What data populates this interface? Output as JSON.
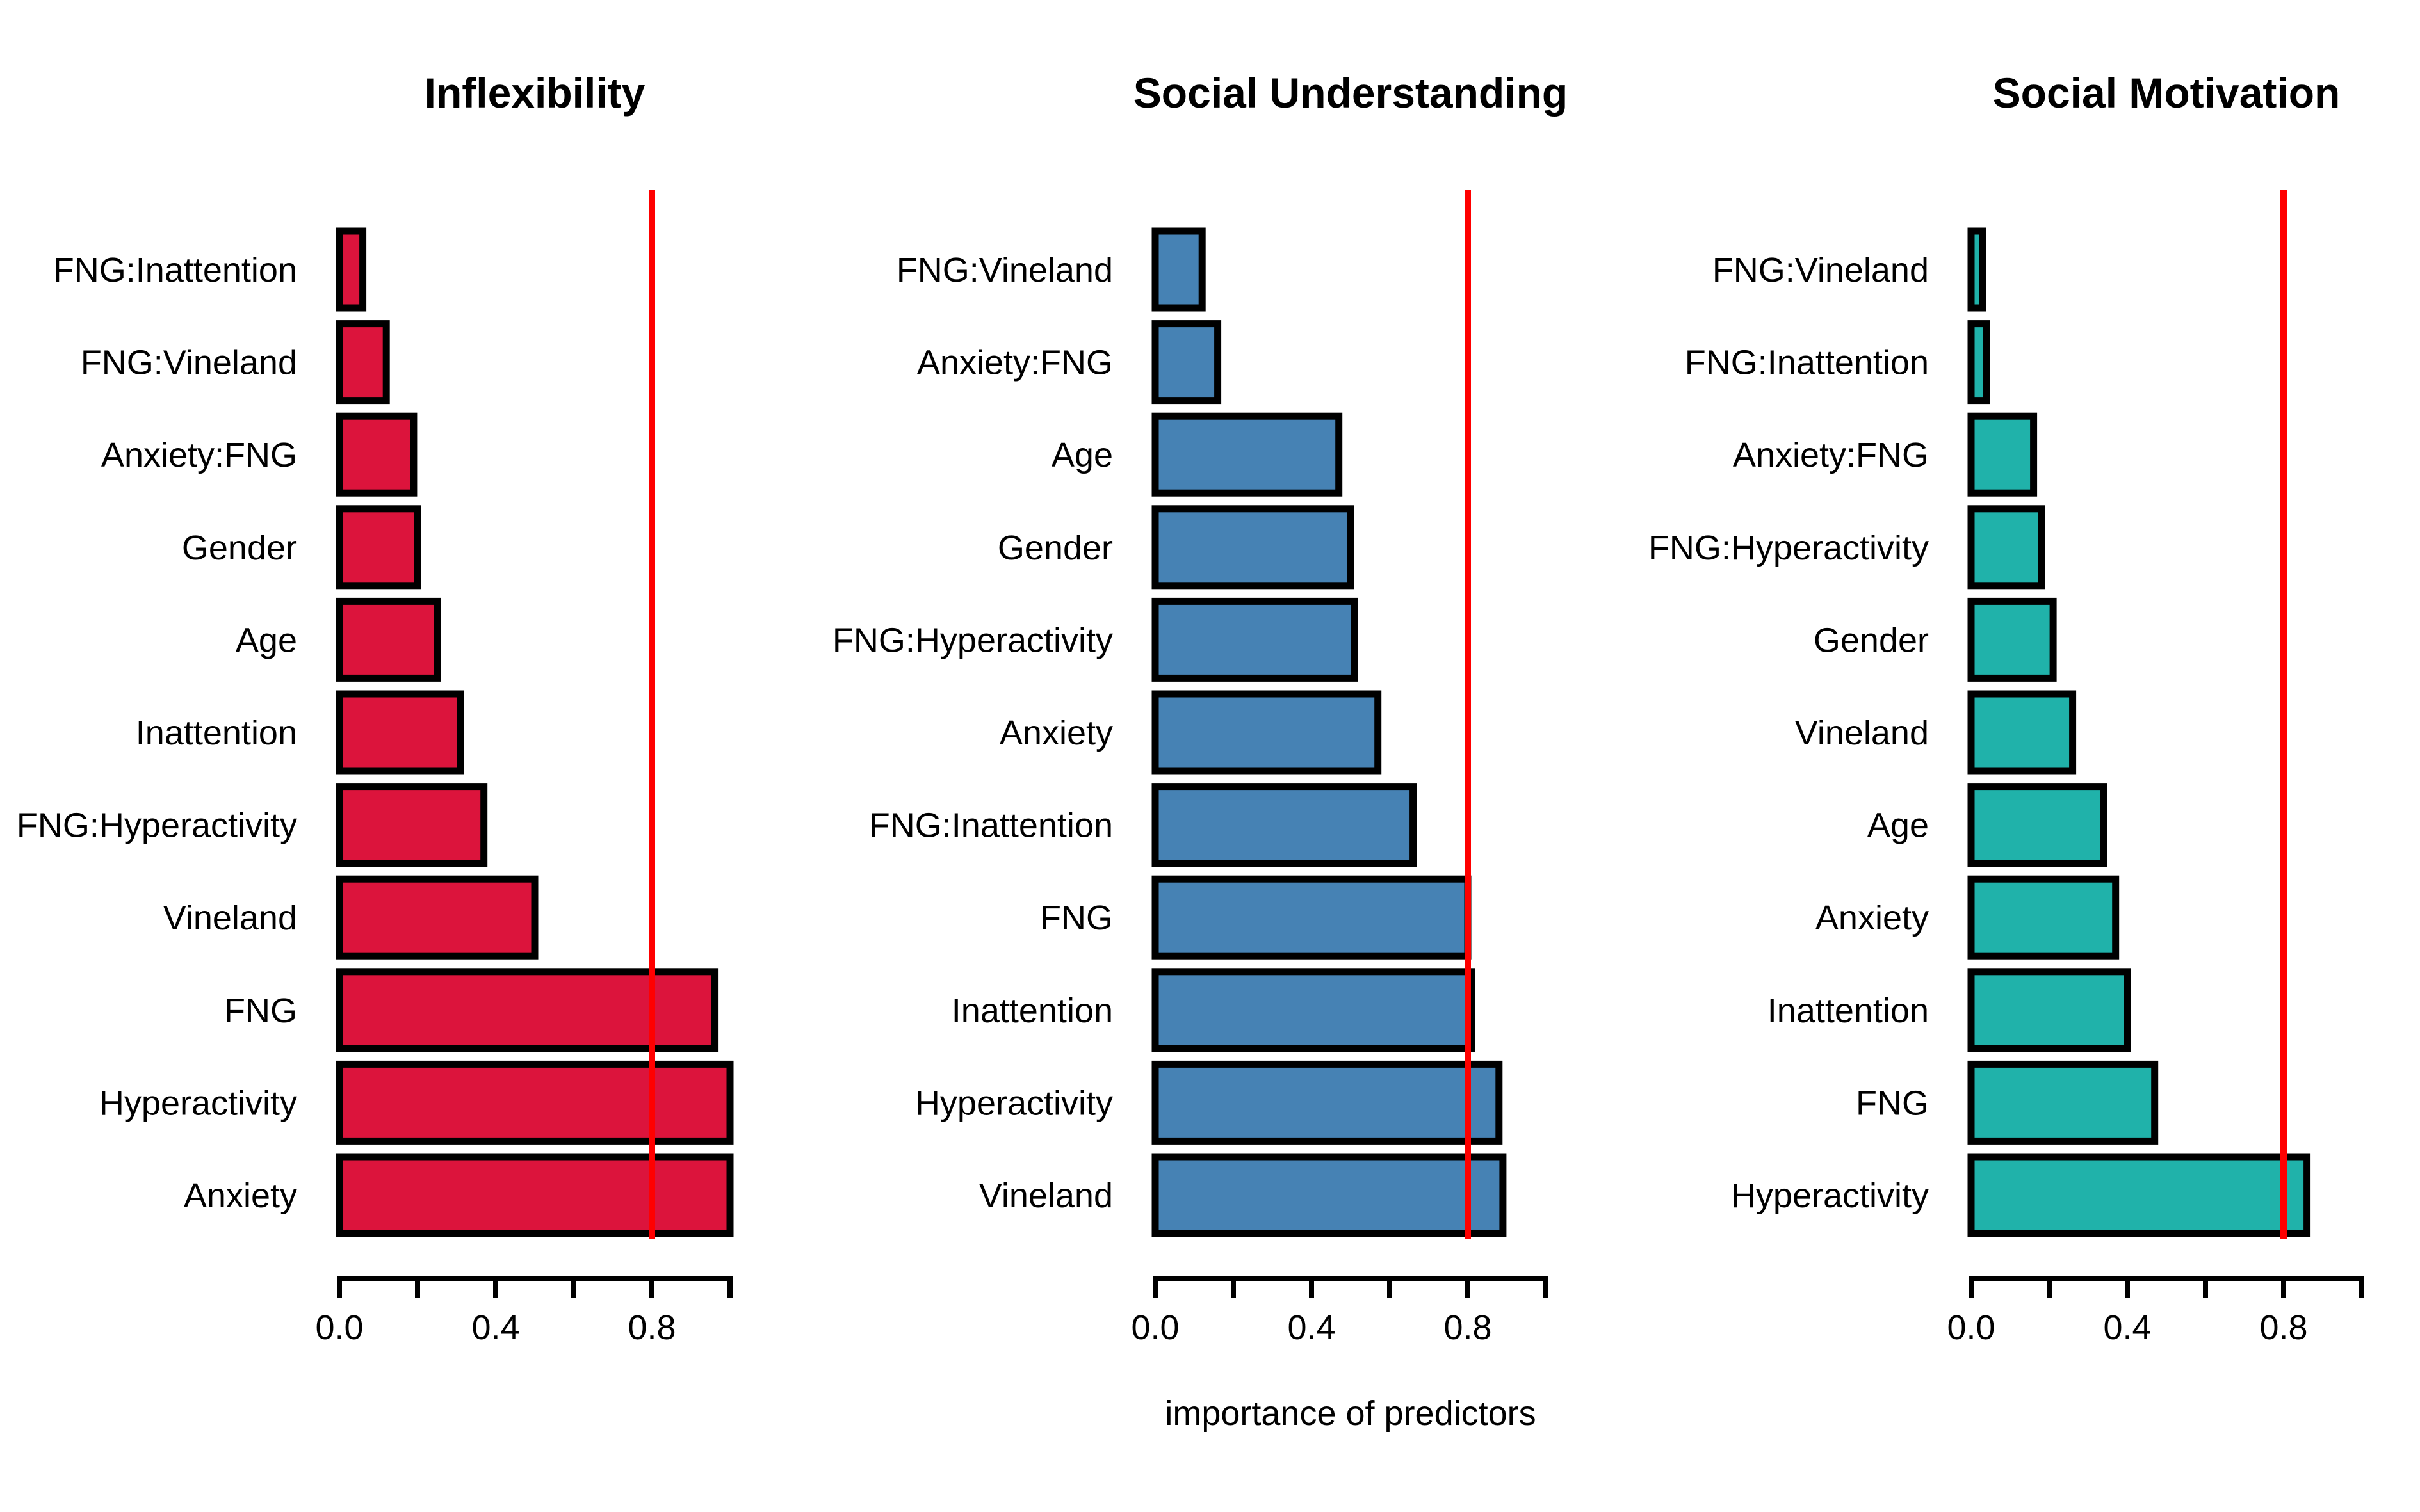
{
  "chart_data": [
    {
      "type": "bar",
      "orientation": "horizontal",
      "title": "Inflexibility",
      "color": "#DC143C",
      "categories": [
        "FNG:Inattention",
        "FNG:Vineland",
        "Anxiety:FNG",
        "Gender",
        "Age",
        "Inattention",
        "FNG:Hyperactivity",
        "Vineland",
        "FNG",
        "Hyperactivity",
        "Anxiety"
      ],
      "values": [
        0.06,
        0.12,
        0.19,
        0.2,
        0.25,
        0.31,
        0.37,
        0.5,
        0.96,
        1.0,
        1.0
      ],
      "threshold": 0.8,
      "xlim": [
        0,
        1
      ],
      "ticks": [
        "0.0",
        "0.4",
        "0.8"
      ],
      "xlabel": ""
    },
    {
      "type": "bar",
      "orientation": "horizontal",
      "title": "Social Understanding",
      "color": "#4682B4",
      "categories": [
        "FNG:Vineland",
        "Anxiety:FNG",
        "Age",
        "Gender",
        "FNG:Hyperactivity",
        "Anxiety",
        "FNG:Inattention",
        "FNG",
        "Inattention",
        "Hyperactivity",
        "Vineland"
      ],
      "values": [
        0.12,
        0.16,
        0.47,
        0.5,
        0.51,
        0.57,
        0.66,
        0.8,
        0.81,
        0.88,
        0.89
      ],
      "threshold": 0.8,
      "xlim": [
        0,
        1
      ],
      "ticks": [
        "0.0",
        "0.4",
        "0.8"
      ],
      "xlabel": "importance of predictors"
    },
    {
      "type": "bar",
      "orientation": "horizontal",
      "title": "Social Motivation",
      "color": "#20B2AA",
      "categories": [
        "FNG:Vineland",
        "FNG:Inattention",
        "Anxiety:FNG",
        "FNG:Hyperactivity",
        "Gender",
        "Vineland",
        "Age",
        "Anxiety",
        "Inattention",
        "FNG",
        "Hyperactivity"
      ],
      "values": [
        0.03,
        0.04,
        0.16,
        0.18,
        0.21,
        0.26,
        0.34,
        0.37,
        0.4,
        0.47,
        0.86
      ],
      "threshold": 0.8,
      "xlim": [
        0,
        1
      ],
      "ticks": [
        "0.0",
        "0.4",
        "0.8"
      ],
      "xlabel": ""
    }
  ]
}
